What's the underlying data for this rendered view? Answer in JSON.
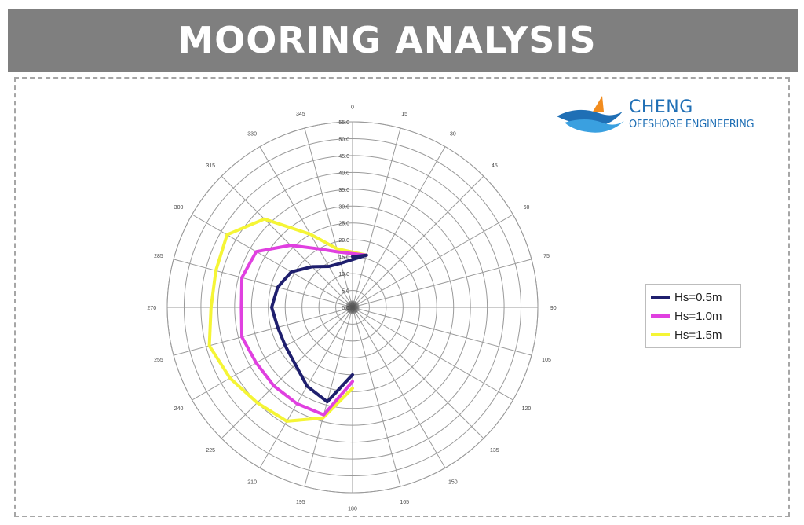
{
  "header": {
    "title": "MOORING ANALYSIS"
  },
  "logo": {
    "name": "CHENG",
    "subtitle": "OFFSHORE ENGINEERING",
    "accent": "#1f6fb5",
    "sail": "#f28c1e"
  },
  "colors": {
    "banner": "#7f7f7f",
    "grid": "#9a9a9a"
  },
  "chart_data": {
    "type": "polar-line",
    "radial_ticks": [
      "0.0",
      "5.0",
      "10.0",
      "15.0",
      "20.0",
      "25.0",
      "30.0",
      "35.0",
      "40.0",
      "45.0",
      "50.0",
      "55.0"
    ],
    "rlim": [
      0,
      55
    ],
    "angular_ticks": [
      "0",
      "15",
      "30",
      "45",
      "60",
      "75",
      "90",
      "105",
      "120",
      "135",
      "150",
      "165",
      "180",
      "195",
      "210",
      "225",
      "240",
      "255",
      "270",
      "285",
      "300",
      "315",
      "330",
      "345"
    ],
    "legend_position": "right",
    "series": [
      {
        "name": "Hs=0.5m",
        "color": "#1f1f6e",
        "points": [
          [
            0,
            15
          ],
          [
            15,
            16
          ],
          [
            345,
            13.5
          ],
          [
            330,
            14
          ],
          [
            315,
            17
          ],
          [
            300,
            21
          ],
          [
            285,
            23
          ],
          [
            270,
            24
          ],
          [
            255,
            23
          ],
          [
            240,
            23
          ],
          [
            225,
            24
          ],
          [
            210,
            27
          ],
          [
            195,
            29
          ],
          [
            180,
            20
          ]
        ]
      },
      {
        "name": "Hs=1.0m",
        "color": "#e040e0",
        "points": [
          [
            0,
            15
          ],
          [
            15,
            16
          ],
          [
            345,
            17
          ],
          [
            330,
            20
          ],
          [
            315,
            26
          ],
          [
            300,
            33
          ],
          [
            285,
            34
          ],
          [
            270,
            33
          ],
          [
            255,
            34
          ],
          [
            240,
            33
          ],
          [
            225,
            33
          ],
          [
            210,
            33
          ],
          [
            195,
            33
          ],
          [
            180,
            22
          ]
        ]
      },
      {
        "name": "Hs=1.5m",
        "color": "#f5f535",
        "points": [
          [
            0,
            15
          ],
          [
            15,
            16
          ],
          [
            345,
            18
          ],
          [
            330,
            25
          ],
          [
            315,
            37
          ],
          [
            300,
            43
          ],
          [
            285,
            42
          ],
          [
            270,
            42
          ],
          [
            255,
            44
          ],
          [
            240,
            42
          ],
          [
            225,
            40
          ],
          [
            210,
            39
          ],
          [
            195,
            34
          ],
          [
            180,
            24
          ]
        ]
      }
    ]
  }
}
